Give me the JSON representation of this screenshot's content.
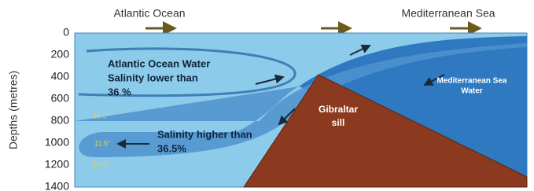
{
  "header": {
    "left": "Atlantic Ocean",
    "right": "Mediterranean Sea"
  },
  "axis": {
    "label": "Depths (metres)",
    "ticks": [
      0,
      200,
      400,
      600,
      800,
      1000,
      1200,
      1400
    ]
  },
  "labels": {
    "atlantic": [
      "Atlantic Ocean Water",
      "Salinity lower than",
      "36 %"
    ],
    "outflow": [
      "Salinity higher than",
      "36.5%"
    ],
    "sill": [
      "Gibraltar",
      "sill"
    ],
    "mediterranean": [
      "Mediterranean Sea",
      "Water"
    ],
    "temperatures": [
      "10.0°",
      "11.5°",
      "10.0°"
    ]
  }
}
